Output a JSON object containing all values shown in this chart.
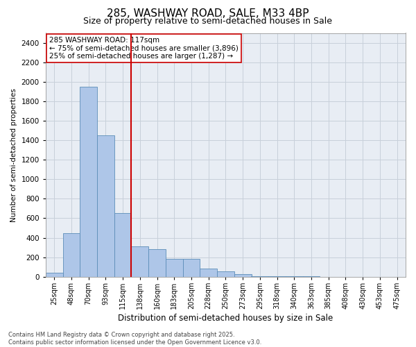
{
  "title": "285, WASHWAY ROAD, SALE, M33 4BP",
  "subtitle": "Size of property relative to semi-detached houses in Sale",
  "xlabel": "Distribution of semi-detached houses by size in Sale",
  "ylabel": "Number of semi-detached properties",
  "categories": [
    "25sqm",
    "48sqm",
    "70sqm",
    "93sqm",
    "115sqm",
    "138sqm",
    "160sqm",
    "183sqm",
    "205sqm",
    "228sqm",
    "250sqm",
    "273sqm",
    "295sqm",
    "318sqm",
    "340sqm",
    "363sqm",
    "385sqm",
    "408sqm",
    "430sqm",
    "453sqm",
    "475sqm"
  ],
  "values": [
    40,
    450,
    1950,
    1450,
    650,
    310,
    280,
    180,
    180,
    85,
    55,
    30,
    5,
    5,
    5,
    5,
    0,
    0,
    0,
    0,
    0
  ],
  "bar_color": "#aec6e8",
  "bar_edge_color": "#5b8db8",
  "vline_color": "#cc0000",
  "vline_index": 4,
  "annotation_text": "285 WASHWAY ROAD: 117sqm\n← 75% of semi-detached houses are smaller (3,896)\n25% of semi-detached houses are larger (1,287) →",
  "annotation_box_color": "#ffffff",
  "annotation_box_edge": "#cc0000",
  "ylim": [
    0,
    2500
  ],
  "yticks": [
    0,
    200,
    400,
    600,
    800,
    1000,
    1200,
    1400,
    1600,
    1800,
    2000,
    2200,
    2400
  ],
  "grid_color": "#c8d0da",
  "bg_color": "#e8edf4",
  "footer_text": "Contains HM Land Registry data © Crown copyright and database right 2025.\nContains public sector information licensed under the Open Government Licence v3.0.",
  "title_fontsize": 11,
  "subtitle_fontsize": 9,
  "annot_fontsize": 7.5,
  "ylabel_fontsize": 7.5,
  "xlabel_fontsize": 8.5,
  "tick_fontsize": 7,
  "ytick_fontsize": 7.5,
  "footer_fontsize": 6
}
